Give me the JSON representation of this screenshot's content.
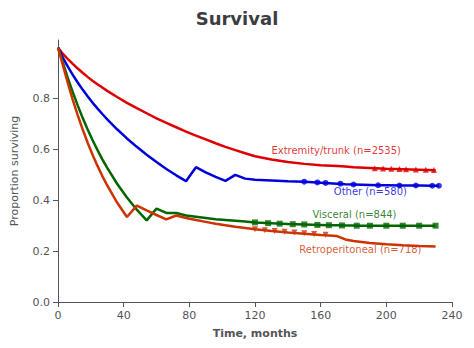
{
  "chart_data": {
    "type": "line",
    "title": "Survival",
    "xlabel": "Time, months",
    "ylabel": "Proportion surviving",
    "xlim": [
      0,
      240
    ],
    "ylim": [
      0.0,
      1.03
    ],
    "xticks": [
      0,
      40,
      80,
      120,
      160,
      200,
      240
    ],
    "yticks": [
      {
        "value": 0.0,
        "label": "0.0"
      },
      0.2,
      0.4,
      0.6,
      0.8
    ],
    "grid": false,
    "series": [
      {
        "color": "#dd0000",
        "marker": "triangle-up",
        "x": [
          0,
          3,
          6,
          9,
          12,
          15,
          18,
          21,
          24,
          27,
          30,
          36,
          42,
          48,
          54,
          60,
          66,
          72,
          78,
          84,
          90,
          96,
          102,
          108,
          114,
          120,
          130,
          140,
          150,
          160,
          170,
          175,
          180,
          190,
          200,
          210,
          220,
          230
        ],
        "values": [
          1.0,
          0.975,
          0.955,
          0.936,
          0.918,
          0.901,
          0.885,
          0.87,
          0.856,
          0.843,
          0.83,
          0.806,
          0.783,
          0.762,
          0.742,
          0.722,
          0.704,
          0.687,
          0.67,
          0.654,
          0.639,
          0.624,
          0.61,
          0.597,
          0.585,
          0.573,
          0.56,
          0.55,
          0.543,
          0.538,
          0.535,
          0.533,
          0.53,
          0.527,
          0.524,
          0.522,
          0.52,
          0.518
        ],
        "censor_x": [
          193,
          198,
          203,
          208,
          212,
          218,
          224,
          229
        ],
        "censor_values": [
          0.526,
          0.525,
          0.524,
          0.523,
          0.522,
          0.521,
          0.52,
          0.519
        ]
      },
      {
        "color": "#0000dd",
        "marker": "circle",
        "x": [
          0,
          3,
          6,
          9,
          12,
          15,
          18,
          21,
          24,
          27,
          30,
          36,
          42,
          48,
          54,
          60,
          66,
          72,
          78,
          84,
          90,
          96,
          102,
          108,
          114,
          120,
          130,
          140,
          150,
          155,
          160,
          165,
          170,
          175,
          180,
          185,
          190,
          195,
          200,
          210,
          215,
          220,
          228,
          232
        ],
        "values": [
          1.0,
          0.96,
          0.925,
          0.893,
          0.863,
          0.835,
          0.809,
          0.784,
          0.761,
          0.739,
          0.718,
          0.679,
          0.643,
          0.61,
          0.579,
          0.55,
          0.523,
          0.498,
          0.475,
          0.53,
          0.51,
          0.492,
          0.476,
          0.5,
          0.485,
          0.481,
          0.478,
          0.475,
          0.473,
          0.471,
          0.469,
          0.467,
          0.465,
          0.463,
          0.462,
          0.461,
          0.46,
          0.459,
          0.459,
          0.458,
          0.458,
          0.458,
          0.457,
          0.457
        ],
        "censor_x": [
          150,
          158,
          163,
          172,
          180,
          195,
          208,
          218,
          228,
          232
        ],
        "censor_values": [
          0.473,
          0.47,
          0.468,
          0.465,
          0.462,
          0.459,
          0.458,
          0.458,
          0.457,
          0.457
        ]
      },
      {
        "color": "#006600",
        "marker": "square",
        "x": [
          0,
          3,
          6,
          9,
          12,
          15,
          18,
          21,
          24,
          27,
          30,
          36,
          42,
          48,
          54,
          60,
          66,
          72,
          78,
          84,
          90,
          96,
          102,
          108,
          114,
          120,
          130,
          140,
          150,
          160,
          165,
          170,
          175,
          180,
          185,
          190,
          195,
          200,
          210,
          220,
          230
        ],
        "values": [
          1.0,
          0.94,
          0.88,
          0.825,
          0.773,
          0.724,
          0.679,
          0.637,
          0.598,
          0.561,
          0.527,
          0.465,
          0.411,
          0.363,
          0.321,
          0.367,
          0.35,
          0.35,
          0.34,
          0.335,
          0.33,
          0.325,
          0.322,
          0.319,
          0.316,
          0.313,
          0.31,
          0.307,
          0.305,
          0.303,
          0.302,
          0.302,
          0.301,
          0.301,
          0.3,
          0.3,
          0.3,
          0.3,
          0.3,
          0.3,
          0.3
        ],
        "censor_x": [
          120,
          128,
          135,
          143,
          150,
          158,
          165,
          173,
          182,
          190,
          200,
          210,
          220,
          230
        ],
        "censor_values": [
          0.313,
          0.31,
          0.308,
          0.306,
          0.305,
          0.303,
          0.302,
          0.301,
          0.3,
          0.3,
          0.3,
          0.3,
          0.3,
          0.3
        ]
      },
      {
        "color": "#cc3300",
        "marker": "triangle-down",
        "x": [
          0,
          3,
          6,
          9,
          12,
          15,
          18,
          21,
          24,
          27,
          30,
          36,
          42,
          48,
          54,
          60,
          66,
          72,
          78,
          84,
          90,
          96,
          102,
          108,
          114,
          120,
          130,
          140,
          150,
          160,
          165,
          170,
          175,
          180,
          185,
          190,
          200,
          210,
          220,
          230
        ],
        "values": [
          1.0,
          0.93,
          0.86,
          0.795,
          0.735,
          0.679,
          0.627,
          0.58,
          0.536,
          0.495,
          0.458,
          0.391,
          0.334,
          0.379,
          0.36,
          0.342,
          0.325,
          0.34,
          0.33,
          0.322,
          0.315,
          0.308,
          0.302,
          0.296,
          0.291,
          0.286,
          0.279,
          0.273,
          0.268,
          0.263,
          0.261,
          0.259,
          0.246,
          0.24,
          0.236,
          0.232,
          0.227,
          0.223,
          0.22,
          0.218
        ],
        "censor_x": [
          120,
          126,
          132,
          138,
          144,
          150,
          156,
          163
        ],
        "censor_values": [
          0.286,
          0.282,
          0.279,
          0.276,
          0.273,
          0.27,
          0.267,
          0.264
        ]
      }
    ],
    "annotations": [
      {
        "text": "Extremity/trunk (n=2535)",
        "x": 130,
        "y": 0.595,
        "color": "#dd0000"
      },
      {
        "text": "Other (n=580)",
        "x": 168,
        "y": 0.435,
        "color": "#0000dd"
      },
      {
        "text": "Visceral (n=844)",
        "x": 155,
        "y": 0.345,
        "color": "#006600"
      },
      {
        "text": "Retroperitoneal (n=718)",
        "x": 147,
        "y": 0.208,
        "color": "#cc3300"
      }
    ]
  }
}
